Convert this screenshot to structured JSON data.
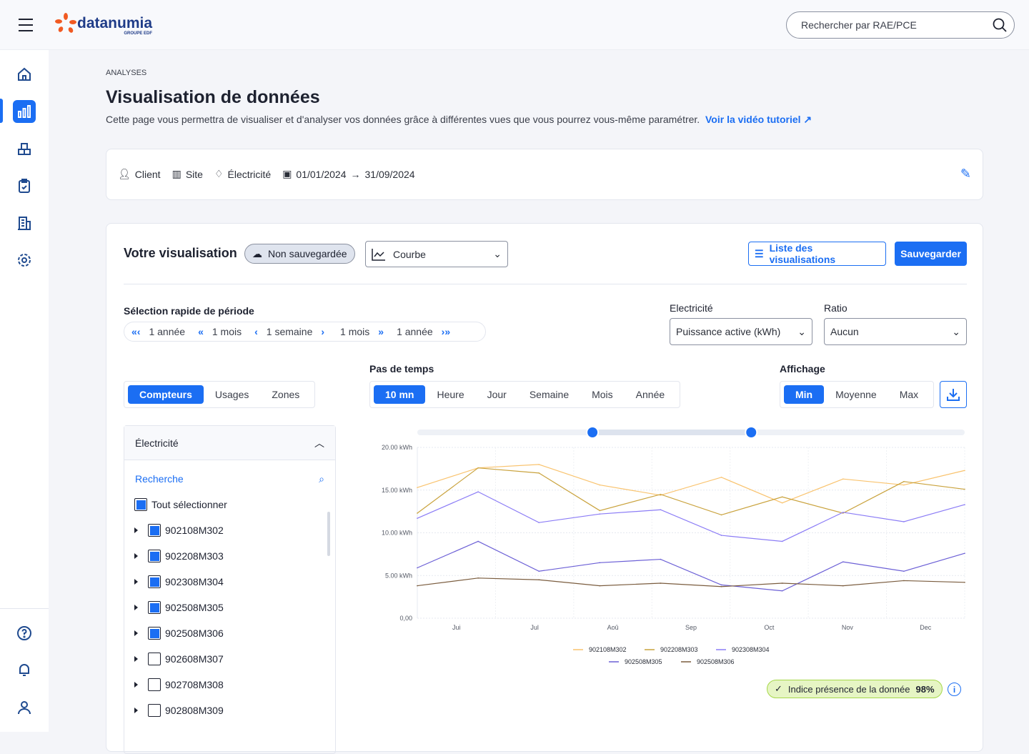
{
  "header": {
    "brand": "datanumia",
    "brand_sub": "GROUPE EDF",
    "search_placeholder": "Rechercher par RAE/PCE"
  },
  "sidebar": {
    "items": [
      "home-icon",
      "chart-icon",
      "coins-icon",
      "clipboard-icon",
      "building-icon",
      "gear-icon"
    ],
    "bottom": [
      "help-icon",
      "bell-icon",
      "user-icon"
    ],
    "active": "chart-icon"
  },
  "page": {
    "breadcrumb": "ANALYSES",
    "title": "Visualisation de données",
    "description": "Cette page vous permettra de visualiser et d'analyser vos données grâce à différentes vues que vous pourrez vous-même paramétrer.",
    "tutorial_link": "Voir la vidéo tutoriel"
  },
  "filters": {
    "client": "Client",
    "site": "Site",
    "energy": "Électricité",
    "date_start": "01/01/2024",
    "date_end": "31/09/2024"
  },
  "viz": {
    "title": "Votre visualisation",
    "status": "Non sauvegardée",
    "chart_type": "Courbe",
    "list_button": "Liste des visualisations",
    "save_button": "Sauvegarder",
    "quick_period_label": "Sélection rapide de période",
    "quick_period": [
      "1 année",
      "1 mois",
      "1 semaine",
      "1 mois",
      "1 année"
    ],
    "electricity_label": "Electricité",
    "electricity_value": "Puissance active (kWh)",
    "ratio_label": "Ratio",
    "ratio_value": "Aucun",
    "source_tabs": [
      "Compteurs",
      "Usages",
      "Zones"
    ],
    "source_active": "Compteurs",
    "time_step_label": "Pas de temps",
    "time_steps": [
      "10 mn",
      "Heure",
      "Jour",
      "Semaine",
      "Mois",
      "Année"
    ],
    "time_step_active": "10 mn",
    "display_label": "Affichage",
    "display_modes": [
      "Min",
      "Moyenne",
      "Max"
    ],
    "display_active": "Min",
    "presence_text": "Indice présence de la donnée",
    "presence_value": "98%"
  },
  "tree": {
    "section": "Électricité",
    "search_placeholder": "Recherche",
    "select_all": "Tout sélectionner",
    "items": [
      {
        "label": "902108M302",
        "checked": true
      },
      {
        "label": "902208M303",
        "checked": true
      },
      {
        "label": "902308M304",
        "checked": true
      },
      {
        "label": "902508M305",
        "checked": true
      },
      {
        "label": "902508M306",
        "checked": true
      },
      {
        "label": "902608M307",
        "checked": false
      },
      {
        "label": "902708M308",
        "checked": false
      },
      {
        "label": "902808M309",
        "checked": false
      }
    ]
  },
  "chart_data": {
    "type": "line",
    "x_tick_labels": [
      "Jui",
      "Jul",
      "Aoû",
      "Sep",
      "Oct",
      "Nov",
      "Dec"
    ],
    "y_tick_labels": [
      "0,00",
      "5.00 kWh",
      "10.00 kWh",
      "15.00 kWh",
      "20.00 kWh"
    ],
    "ylim": [
      0,
      20
    ],
    "grid": true,
    "legend": "bottom",
    "series": [
      {
        "name": "902108M302",
        "color": "#f9c36e",
        "values": [
          15.3,
          17.6,
          18.0,
          15.6,
          14.4,
          16.5,
          13.5,
          16.3,
          15.6,
          17.3
        ]
      },
      {
        "name": "902208M303",
        "color": "#c9a23c",
        "values": [
          12.3,
          17.6,
          17.0,
          12.6,
          14.5,
          12.1,
          14.2,
          12.3,
          16.0,
          15.1
        ]
      },
      {
        "name": "902308M304",
        "color": "#8b7cf6",
        "values": [
          11.7,
          14.8,
          11.2,
          12.2,
          12.7,
          9.7,
          9.0,
          12.4,
          11.3,
          13.3
        ]
      },
      {
        "name": "902508M305",
        "color": "#6b5fd6",
        "values": [
          5.9,
          9.0,
          5.5,
          6.5,
          6.9,
          3.9,
          3.2,
          6.6,
          5.5,
          7.6
        ]
      },
      {
        "name": "902508M306",
        "color": "#7a5c3e",
        "values": [
          3.8,
          4.7,
          4.5,
          3.8,
          4.1,
          3.7,
          4.1,
          3.8,
          4.4,
          4.2
        ]
      }
    ],
    "range_slider": [
      0.32,
      0.61
    ]
  }
}
